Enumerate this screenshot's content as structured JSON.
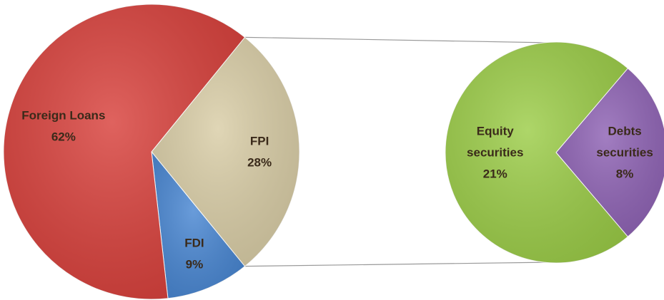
{
  "chart_data": {
    "type": "pie-of-pie",
    "categories": [
      "Foreign Loans",
      "FPI",
      "FDI"
    ],
    "values": [
      62,
      28,
      9
    ],
    "value_labels": [
      "62%",
      "28%",
      "9%"
    ],
    "colors": [
      "#d8403b",
      "#d9cda6",
      "#4886d2"
    ],
    "secondary": {
      "categories": [
        "Equity securities",
        "Debts securities"
      ],
      "values": [
        21,
        8
      ],
      "value_labels": [
        "21%",
        "8%"
      ],
      "colors": [
        "#9ccd48",
        "#8e62b4"
      ]
    }
  }
}
